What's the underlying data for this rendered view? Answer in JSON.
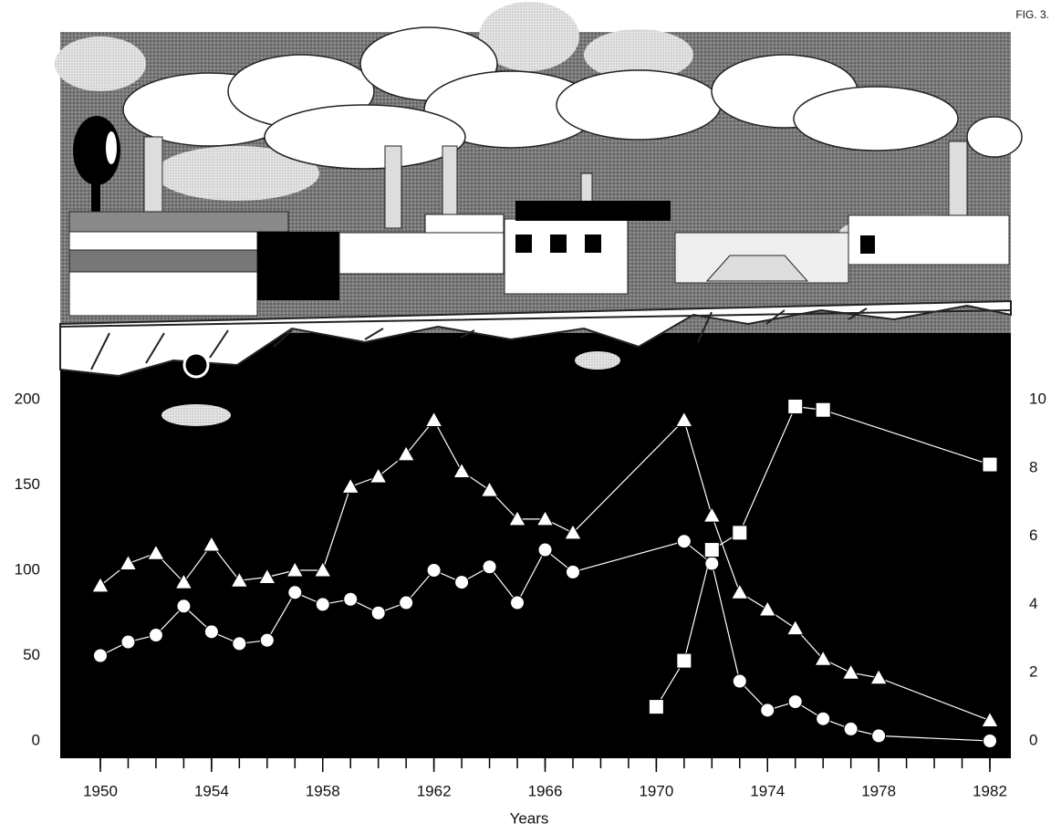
{
  "chart_data": {
    "type": "line",
    "figure_label": "FIG. 3.",
    "xlabel": "Years",
    "xlim": [
      1950,
      1982
    ],
    "xticks": [
      1950,
      1954,
      1958,
      1962,
      1966,
      1970,
      1974,
      1978,
      1982
    ],
    "xminorticks": [
      1950,
      1951,
      1952,
      1953,
      1954,
      1955,
      1956,
      1957,
      1958,
      1959,
      1960,
      1961,
      1962,
      1963,
      1964,
      1965,
      1966,
      1967,
      1968,
      1969,
      1970,
      1971,
      1972,
      1973,
      1974,
      1975,
      1976,
      1977,
      1978,
      1979,
      1980,
      1981,
      1982
    ],
    "ylim": [
      0,
      200
    ],
    "yticks": [
      0,
      50,
      100,
      150,
      200
    ],
    "y2lim": [
      0,
      10
    ],
    "y2ticks": [
      0,
      2,
      4,
      6,
      8,
      10
    ],
    "series": [
      {
        "marker": "triangle",
        "color": "#ffffff",
        "x": [
          1950,
          1951,
          1952,
          1953,
          1954,
          1955,
          1956,
          1957,
          1958,
          1959,
          1960,
          1961,
          1962,
          1963,
          1964,
          1965,
          1966,
          1967,
          1971,
          1972,
          1973,
          1974,
          1975,
          1976,
          1977,
          1978,
          1982
        ],
        "values": [
          91,
          104,
          110,
          93,
          115,
          94,
          96,
          100,
          100,
          149,
          155,
          168,
          188,
          158,
          147,
          130,
          130,
          122,
          188,
          132,
          87,
          77,
          66,
          48,
          40,
          37,
          12
        ]
      },
      {
        "marker": "circle",
        "color": "#ffffff",
        "x": [
          1950,
          1951,
          1952,
          1953,
          1954,
          1955,
          1956,
          1957,
          1958,
          1959,
          1960,
          1961,
          1962,
          1963,
          1964,
          1965,
          1966,
          1967,
          1971,
          1972,
          1973,
          1974,
          1975,
          1976,
          1977,
          1978,
          1982
        ],
        "values": [
          50,
          58,
          62,
          79,
          64,
          57,
          59,
          87,
          80,
          83,
          75,
          81,
          100,
          93,
          102,
          81,
          112,
          99,
          117,
          104,
          35,
          18,
          23,
          13,
          7,
          3,
          0
        ]
      },
      {
        "marker": "square",
        "color": "#ffffff",
        "axis": "y2",
        "x": [
          1970,
          1971,
          1972,
          1973,
          1975,
          1976,
          1982
        ],
        "values": [
          1.0,
          2.35,
          5.6,
          6.1,
          9.8,
          9.7,
          8.1
        ]
      }
    ]
  }
}
